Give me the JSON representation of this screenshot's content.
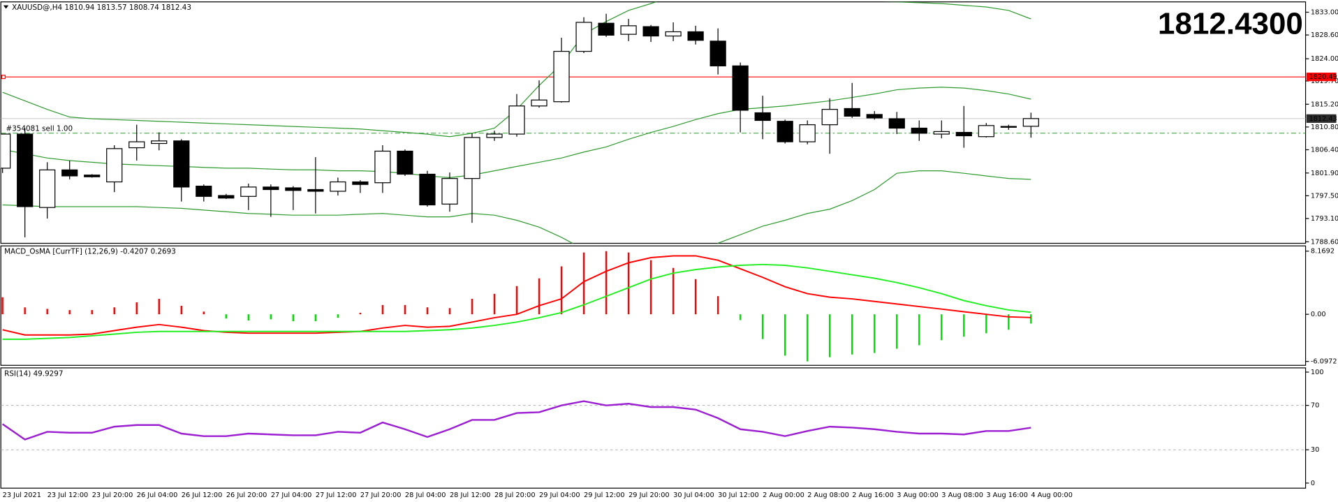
{
  "chart_data": [
    {
      "type": "candlestick",
      "symbol": "XAUUSD@,H4",
      "price_display": "1812.4300",
      "price_display_color": "#7cfc00",
      "categories": [
        "23 Jul 2021",
        null,
        "23 Jul 12:00",
        null,
        "23 Jul 20:00",
        null,
        "26 Jul 04:00",
        null,
        "26 Jul 12:00",
        null,
        "26 Jul 20:00",
        null,
        "27 Jul 04:00",
        null,
        "27 Jul 12:00",
        null,
        "27 Jul 20:00",
        null,
        "28 Jul 04:00",
        null,
        "28 Jul 12:00",
        null,
        "28 Jul 20:00",
        null,
        "29 Jul 04:00",
        null,
        "29 Jul 12:00",
        null,
        "29 Jul 20:00",
        null,
        "30 Jul 04:00",
        null,
        "30 Jul 12:00",
        null,
        "2 Aug 00:00",
        null,
        "2 Aug 08:00",
        null,
        "2 Aug 16:00",
        null,
        "3 Aug 00:00",
        null,
        "3 Aug 08:00",
        null,
        "3 Aug 16:00",
        null,
        "4 Aug 00:00"
      ],
      "open": [
        1802.83,
        1809.43,
        1795.23,
        1802.5,
        1801.5,
        1800.18,
        1806.79,
        1807.61,
        1808.11,
        1799.36,
        1797.54,
        1797.38,
        1799.19,
        1799.03,
        1798.7,
        1798.37,
        1800.18,
        1800.02,
        1806.13,
        1801.67,
        1795.89,
        1800.84,
        1808.77,
        1809.43,
        1814.87,
        1815.69,
        1825.43,
        1830.87,
        1828.73,
        1830.21,
        1828.4,
        1829.22,
        1827.41,
        1822.62,
        1813.55,
        1811.9,
        1807.94,
        1811.24,
        1814.37,
        1813.22,
        1812.4,
        1810.58,
        1809.43,
        1809.76,
        1808.93,
        1810.75,
        1810.94
      ],
      "high": [
        1809.43,
        1810.58,
        1803.98,
        1804.31,
        1801.67,
        1807.28,
        1811.24,
        1809.76,
        1808.44,
        1799.69,
        1797.87,
        1799.85,
        1799.69,
        1799.36,
        1804.97,
        1801.01,
        1800.51,
        1807.28,
        1806.46,
        1802.33,
        1802.0,
        1809.59,
        1810.09,
        1817.18,
        1819.82,
        1828.07,
        1832.03,
        1832.69,
        1831.7,
        1830.54,
        1831.04,
        1830.38,
        1829.88,
        1823.28,
        1816.85,
        1812.23,
        1812.07,
        1816.35,
        1819.32,
        1813.88,
        1813.72,
        1812.07,
        1812.07,
        1814.87,
        1811.57,
        1811.24,
        1813.57
      ],
      "low": [
        1801.9,
        1789.46,
        1793.09,
        1800.68,
        1801.01,
        1798.2,
        1804.31,
        1806.29,
        1796.39,
        1796.39,
        1796.88,
        1794.74,
        1793.42,
        1794.74,
        1794.08,
        1797.54,
        1798.04,
        1798.04,
        1801.34,
        1795.4,
        1794.41,
        1792.26,
        1808.11,
        1808.93,
        1814.54,
        1815.53,
        1825.1,
        1828.23,
        1827.41,
        1827.24,
        1827.41,
        1826.75,
        1820.97,
        1809.76,
        1808.44,
        1807.61,
        1807.45,
        1805.63,
        1812.56,
        1812.23,
        1809.43,
        1808.11,
        1808.6,
        1806.79,
        1808.77,
        1810.25,
        1808.74
      ],
      "close": [
        1809.43,
        1795.4,
        1802.5,
        1801.34,
        1801.17,
        1806.62,
        1807.94,
        1808.11,
        1799.19,
        1797.38,
        1797.05,
        1799.19,
        1798.7,
        1798.53,
        1798.37,
        1800.18,
        1799.69,
        1806.13,
        1801.67,
        1795.73,
        1800.84,
        1808.77,
        1809.43,
        1814.87,
        1816.02,
        1825.43,
        1831.04,
        1828.56,
        1830.38,
        1828.4,
        1829.22,
        1827.57,
        1822.62,
        1814.04,
        1812.07,
        1807.94,
        1811.24,
        1814.21,
        1812.89,
        1812.56,
        1810.58,
        1809.59,
        1809.92,
        1809.1,
        1811.08,
        1810.91,
        1812.43
      ],
      "up_color": "#ffffff",
      "down_color": "#000000",
      "bands": [
        {
          "color": "#2e9a2e",
          "values": [
            1817.51,
            1815.86,
            1814.21,
            1812.73,
            1812.4,
            1812.23,
            1812.07,
            1811.9,
            1811.74,
            1811.57,
            1811.41,
            1811.24,
            1811.08,
            1810.91,
            1810.75,
            1810.58,
            1810.42,
            1810.09,
            1809.76,
            1809.43,
            1808.93,
            1809.59,
            1810.58,
            1814.21,
            1818.83,
            1822.96,
            1828.73,
            1831.21,
            1833.35,
            1834.67,
            1836.16,
            1837.31,
            1837.81,
            1837.31,
            1836.98,
            1836.65,
            1836.16,
            1835.66,
            1835.33,
            1835.17,
            1835.0,
            1834.84,
            1834.67,
            1834.34,
            1834.01,
            1833.35,
            1831.7
          ]
        },
        {
          "color": "#2e9a2e",
          "values": [
            1806.46,
            1805.63,
            1804.81,
            1804.31,
            1803.98,
            1803.65,
            1803.49,
            1803.32,
            1803.16,
            1802.99,
            1802.83,
            1802.83,
            1802.66,
            1802.5,
            1802.5,
            1802.33,
            1802.33,
            1802.17,
            1801.84,
            1801.34,
            1801.01,
            1801.5,
            1802.33,
            1803.16,
            1803.98,
            1804.81,
            1805.96,
            1806.95,
            1808.44,
            1809.76,
            1810.91,
            1812.23,
            1813.39,
            1814.21,
            1814.54,
            1814.87,
            1815.37,
            1815.86,
            1816.52,
            1817.18,
            1818.01,
            1818.34,
            1818.5,
            1818.34,
            1817.84,
            1817.18,
            1816.19
          ]
        },
        {
          "color": "#2e9a2e",
          "values": [
            1795.73,
            1795.57,
            1795.4,
            1795.4,
            1795.4,
            1795.4,
            1795.4,
            1795.23,
            1795.07,
            1794.74,
            1794.41,
            1794.08,
            1793.92,
            1793.75,
            1793.75,
            1793.75,
            1793.92,
            1794.08,
            1793.75,
            1793.42,
            1793.42,
            1794.08,
            1793.75,
            1792.76,
            1791.44,
            1789.46,
            1787.15,
            1785.01,
            1783.85,
            1783.85,
            1785.01,
            1786.66,
            1788.31,
            1789.96,
            1791.61,
            1792.76,
            1794.08,
            1794.9,
            1796.56,
            1798.7,
            1801.84,
            1802.33,
            1802.33,
            1801.84,
            1801.34,
            1800.84,
            1800.68
          ]
        }
      ],
      "hlines": [
        {
          "value": 1820.49,
          "color": "#ff0000"
        }
      ],
      "order": {
        "label": "#354081 sell 1.00",
        "value": 1809.6,
        "color": "#2e9a2e"
      },
      "ylim": [
        1788.3,
        1835.0
      ],
      "yticks": [
        {
          "value": 1833.0,
          "label": "1833.00"
        },
        {
          "value": 1828.6,
          "label": "1828.60"
        },
        {
          "value": 1824.0,
          "label": "1824.00"
        },
        {
          "value": 1819.7,
          "label": "1819.70"
        },
        {
          "value": 1815.2,
          "label": "1815.20"
        },
        {
          "value": 1810.8,
          "label": "1810.80"
        },
        {
          "value": 1806.4,
          "label": "1806.40"
        },
        {
          "value": 1801.9,
          "label": "1801.90"
        },
        {
          "value": 1797.5,
          "label": "1797.50"
        },
        {
          "value": 1793.1,
          "label": "1793.10"
        },
        {
          "value": 1788.6,
          "label": "1788.60"
        }
      ]
    },
    {
      "type": "macd",
      "name": "MACD_OsMA [CurrTF] (12,26,9)",
      "histogram": {
        "up_color": "#ff0000",
        "down_color": "#00dd00",
        "values": [
          2.2,
          0.9,
          0.7,
          0.55,
          0.55,
          0.9,
          1.55,
          2.0,
          1.1,
          0.35,
          -0.55,
          -0.8,
          -0.65,
          -0.9,
          -0.9,
          -0.45,
          0.2,
          1.2,
          1.2,
          0.9,
          0.8,
          2.0,
          2.65,
          3.65,
          4.65,
          6.2,
          8.0,
          8.1692,
          8.0,
          7.0,
          6.0,
          4.55,
          2.35,
          -0.75,
          -3.2,
          -5.35,
          -6.0972,
          -5.55,
          -5.2,
          -5.0,
          -4.45,
          -4.0,
          -3.35,
          -2.9,
          -2.45,
          -2.0,
          -1.2
        ]
      },
      "series": [
        {
          "color": "#ff0000",
          "values": [
            -2.0,
            -2.67,
            -2.67,
            -2.67,
            -2.56,
            -2.11,
            -1.67,
            -1.33,
            -1.67,
            -2.11,
            -2.33,
            -2.44,
            -2.44,
            -2.44,
            -2.44,
            -2.33,
            -2.22,
            -1.78,
            -1.44,
            -1.67,
            -1.56,
            -1.0,
            -0.44,
            0.0,
            1.11,
            2.0,
            4.22,
            5.56,
            6.67,
            7.33,
            7.56,
            7.56,
            7.0,
            5.89,
            4.78,
            3.56,
            2.67,
            2.22,
            2.0,
            1.67,
            1.33,
            1.0,
            0.67,
            0.33,
            0.0,
            -0.33,
            -0.4207
          ]
        },
        {
          "color": "#22ee22",
          "values": [
            -3.22,
            -3.22,
            -3.11,
            -3.0,
            -2.78,
            -2.56,
            -2.33,
            -2.22,
            -2.22,
            -2.22,
            -2.22,
            -2.22,
            -2.22,
            -2.22,
            -2.22,
            -2.22,
            -2.22,
            -2.22,
            -2.22,
            -2.11,
            -2.0,
            -1.78,
            -1.44,
            -1.0,
            -0.44,
            0.22,
            1.22,
            2.33,
            3.44,
            4.56,
            5.33,
            5.78,
            6.11,
            6.33,
            6.44,
            6.33,
            6.0,
            5.56,
            5.11,
            4.67,
            4.11,
            3.44,
            2.67,
            1.78,
            1.11,
            0.56,
            0.2693
          ]
        }
      ],
      "ylim": [
        -6.6,
        8.85
      ],
      "yticks": [
        8.1692,
        {
          "value": 0,
          "label": "0.00"
        },
        -6.0972
      ]
    },
    {
      "type": "line",
      "name": "RSI(14)",
      "series": [
        {
          "color": "#9b1fd1",
          "values": [
            53.1,
            39.2,
            46.2,
            45.4,
            45.4,
            50.8,
            52.3,
            52.3,
            44.6,
            42.3,
            42.3,
            44.6,
            43.8,
            43.1,
            43.1,
            46.2,
            45.4,
            54.6,
            48.5,
            41.5,
            48.5,
            56.9,
            56.9,
            63.1,
            63.8,
            70.0,
            73.8,
            70.0,
            71.5,
            68.5,
            68.5,
            66.2,
            58.5,
            48.5,
            46.2,
            42.3,
            46.9,
            50.8,
            50.0,
            48.5,
            46.2,
            44.6,
            44.6,
            43.8,
            46.9,
            46.9,
            49.9297
          ]
        }
      ],
      "levels": [
        70,
        30
      ],
      "ylim": [
        -4.6,
        103.8
      ],
      "yticks": [
        100,
        70,
        30,
        0
      ]
    }
  ]
}
